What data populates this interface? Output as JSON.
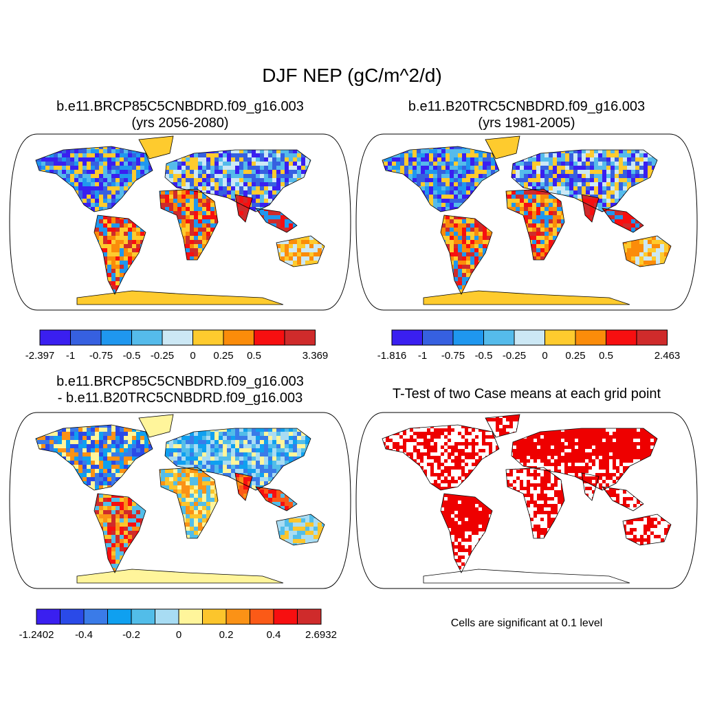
{
  "title": "DJF NEP (gC/m^2/d)",
  "panels": [
    {
      "title_line1": "b.e11.BRCP85C5CNBDRD.f09_g16.003",
      "title_line2": "(yrs 2056-2080)"
    },
    {
      "title_line1": "b.e11.B20TRC5CNBDRD.f09_g16.003",
      "title_line2": "(yrs 1981-2005)"
    },
    {
      "title_line1": "b.e11.BRCP85C5CNBDRD.f09_g16.003",
      "title_line2": "- b.e11.B20TRC5CNBDRD.f09_g16.003"
    },
    {
      "title_line1": "T-Test of two Case means at each grid point",
      "title_line2": ""
    }
  ],
  "colorbars": [
    {
      "colors": [
        "#3a1ff0",
        "#3660e0",
        "#1f97ef",
        "#55bbeb",
        "#cce8f5",
        "#fecb2e",
        "#fb8c0a",
        "#f70f10",
        "#cf2b2b"
      ],
      "labels": [
        "-2.397",
        "-1",
        "-0.75",
        "-0.5",
        "-0.25",
        "0",
        "0.25",
        "0.5",
        "3.369"
      ]
    },
    {
      "colors": [
        "#3a1ff0",
        "#3660e0",
        "#1f97ef",
        "#55bbeb",
        "#cce8f5",
        "#fecb2e",
        "#fb8c0a",
        "#f70f10",
        "#cf2b2b"
      ],
      "labels": [
        "-1.816",
        "-1",
        "-0.75",
        "-0.5",
        "-0.25",
        "0",
        "0.25",
        "0.5",
        "2.463"
      ]
    },
    {
      "colors": [
        "#3a1ff0",
        "#2a4ae8",
        "#3a7be8",
        "#0fa0f0",
        "#52bde9",
        "#a8dcf3",
        "#fff59b",
        "#fcc52c",
        "#fb9216",
        "#fb5a17",
        "#f70f10",
        "#cf2b2b"
      ],
      "labels": [
        "-1.2402",
        "-0.4",
        "-0.2",
        "0",
        "0.2",
        "0.4",
        "2.6932"
      ]
    }
  ],
  "significance_color": "#ee0000",
  "significance_note": "Cells are significant at 0.1 level"
}
